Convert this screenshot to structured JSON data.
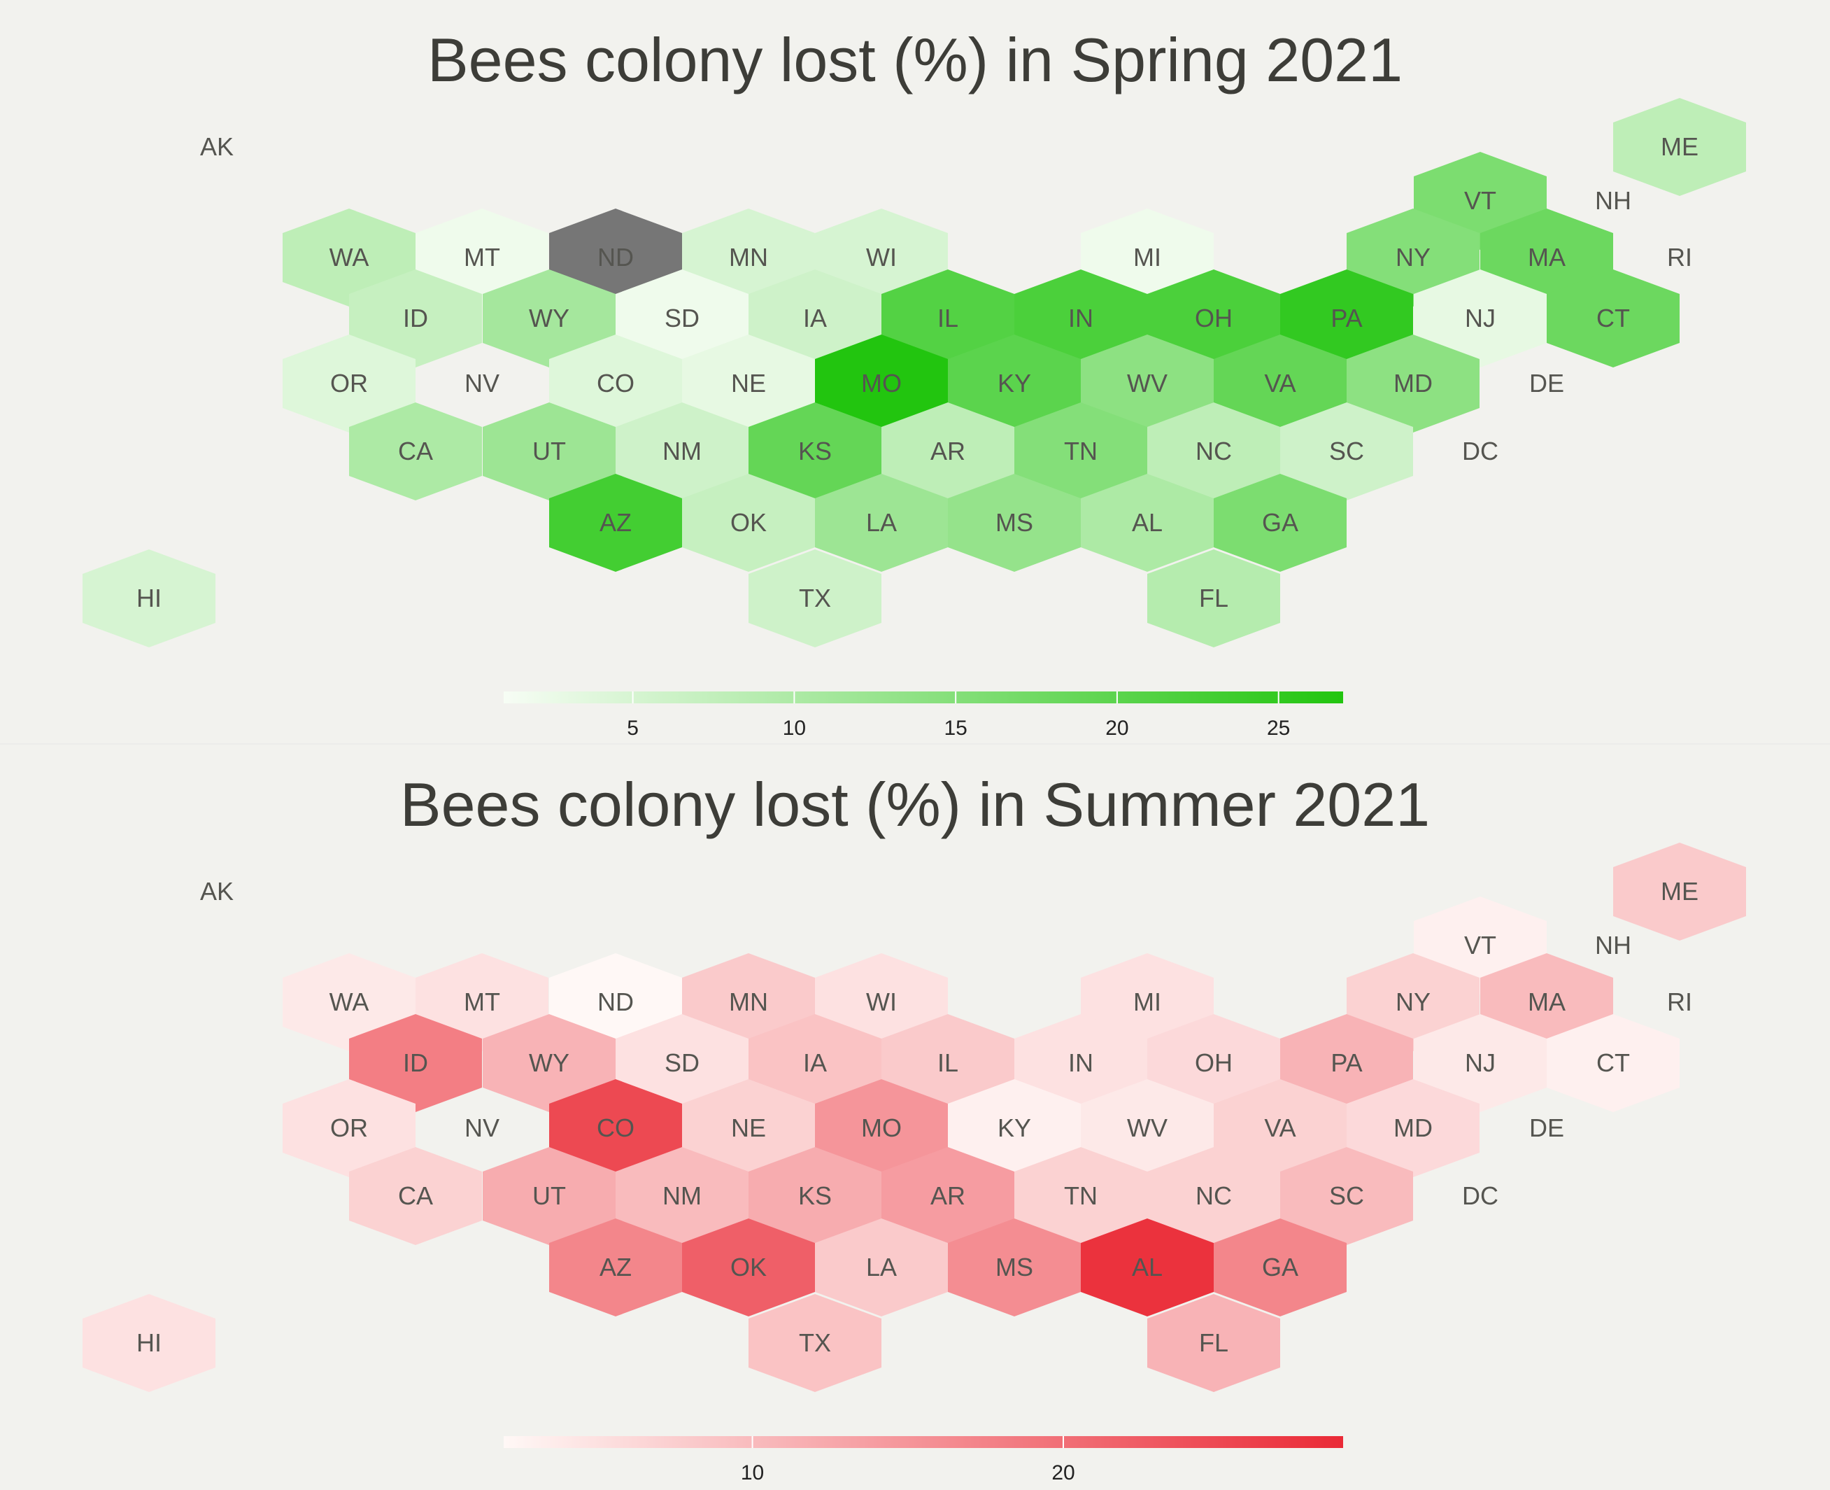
{
  "chart_data": [
    {
      "type": "heatmap",
      "subtype": "hex-tile-map",
      "title": "Bees colony lost (%) in Spring 2021",
      "colorscale": [
        "#f7fdf5",
        "#22c50f"
      ],
      "missing_color": "#767676",
      "colorbar": {
        "range": [
          1,
          27
        ],
        "ticks": [
          5,
          10,
          15,
          20,
          25
        ]
      },
      "states": [
        {
          "abbr": "AK",
          "value": null
        },
        {
          "abbr": "ME",
          "value": 8
        },
        {
          "abbr": "VT",
          "value": 16
        },
        {
          "abbr": "NH",
          "value": null
        },
        {
          "abbr": "WA",
          "value": 8
        },
        {
          "abbr": "MT",
          "value": 2
        },
        {
          "abbr": "ND",
          "value": null,
          "missing": true
        },
        {
          "abbr": "MN",
          "value": 5
        },
        {
          "abbr": "WI",
          "value": 5
        },
        {
          "abbr": "MI",
          "value": 2
        },
        {
          "abbr": "NY",
          "value": 15
        },
        {
          "abbr": "MA",
          "value": 18
        },
        {
          "abbr": "RI",
          "value": null
        },
        {
          "abbr": "ID",
          "value": 7
        },
        {
          "abbr": "WY",
          "value": 11
        },
        {
          "abbr": "SD",
          "value": 2
        },
        {
          "abbr": "IA",
          "value": 6
        },
        {
          "abbr": "IL",
          "value": 21
        },
        {
          "abbr": "IN",
          "value": 22
        },
        {
          "abbr": "OH",
          "value": 22
        },
        {
          "abbr": "PA",
          "value": 25
        },
        {
          "abbr": "NJ",
          "value": 3
        },
        {
          "abbr": "CT",
          "value": 18
        },
        {
          "abbr": "OR",
          "value": 4
        },
        {
          "abbr": "NV",
          "value": null
        },
        {
          "abbr": "CO",
          "value": 4
        },
        {
          "abbr": "NE",
          "value": 3
        },
        {
          "abbr": "MO",
          "value": 27
        },
        {
          "abbr": "KY",
          "value": 20
        },
        {
          "abbr": "WV",
          "value": 14
        },
        {
          "abbr": "VA",
          "value": 19
        },
        {
          "abbr": "MD",
          "value": 14
        },
        {
          "abbr": "DE",
          "value": null
        },
        {
          "abbr": "CA",
          "value": 10
        },
        {
          "abbr": "UT",
          "value": 12
        },
        {
          "abbr": "NM",
          "value": 6
        },
        {
          "abbr": "KS",
          "value": 19
        },
        {
          "abbr": "AR",
          "value": 8
        },
        {
          "abbr": "TN",
          "value": 15
        },
        {
          "abbr": "NC",
          "value": 8
        },
        {
          "abbr": "SC",
          "value": 6
        },
        {
          "abbr": "DC",
          "value": null
        },
        {
          "abbr": "AZ",
          "value": 23
        },
        {
          "abbr": "OK",
          "value": 7
        },
        {
          "abbr": "LA",
          "value": 12
        },
        {
          "abbr": "MS",
          "value": 13
        },
        {
          "abbr": "AL",
          "value": 10
        },
        {
          "abbr": "GA",
          "value": 16
        },
        {
          "abbr": "TX",
          "value": 6
        },
        {
          "abbr": "FL",
          "value": 9
        },
        {
          "abbr": "HI",
          "value": 5
        }
      ]
    },
    {
      "type": "heatmap",
      "subtype": "hex-tile-map",
      "title": "Bees colony lost (%) in Summer 2021",
      "colorscale": [
        "#fff8f6",
        "#ea2a36"
      ],
      "missing_color": "#767676",
      "colorbar": {
        "range": [
          2,
          29
        ],
        "ticks": [
          10,
          20
        ]
      },
      "states": [
        {
          "abbr": "AK",
          "value": null
        },
        {
          "abbr": "ME",
          "value": 8
        },
        {
          "abbr": "VT",
          "value": 3
        },
        {
          "abbr": "NH",
          "value": null
        },
        {
          "abbr": "WA",
          "value": 4
        },
        {
          "abbr": "MT",
          "value": 5
        },
        {
          "abbr": "ND",
          "value": 2
        },
        {
          "abbr": "MN",
          "value": 8
        },
        {
          "abbr": "WI",
          "value": 5
        },
        {
          "abbr": "MI",
          "value": 5
        },
        {
          "abbr": "NY",
          "value": 7
        },
        {
          "abbr": "MA",
          "value": 10
        },
        {
          "abbr": "RI",
          "value": null
        },
        {
          "abbr": "ID",
          "value": 18
        },
        {
          "abbr": "WY",
          "value": 11
        },
        {
          "abbr": "SD",
          "value": 5
        },
        {
          "abbr": "IA",
          "value": 9
        },
        {
          "abbr": "IL",
          "value": 8
        },
        {
          "abbr": "IN",
          "value": 5
        },
        {
          "abbr": "OH",
          "value": 6
        },
        {
          "abbr": "PA",
          "value": 11
        },
        {
          "abbr": "NJ",
          "value": 4
        },
        {
          "abbr": "CT",
          "value": 3
        },
        {
          "abbr": "OR",
          "value": 5
        },
        {
          "abbr": "NV",
          "value": null
        },
        {
          "abbr": "CO",
          "value": 25
        },
        {
          "abbr": "NE",
          "value": 7
        },
        {
          "abbr": "MO",
          "value": 15
        },
        {
          "abbr": "KY",
          "value": 3
        },
        {
          "abbr": "WV",
          "value": 4
        },
        {
          "abbr": "VA",
          "value": 7
        },
        {
          "abbr": "MD",
          "value": 6
        },
        {
          "abbr": "DE",
          "value": null
        },
        {
          "abbr": "CA",
          "value": 7
        },
        {
          "abbr": "UT",
          "value": 12
        },
        {
          "abbr": "NM",
          "value": 10
        },
        {
          "abbr": "KS",
          "value": 12
        },
        {
          "abbr": "AR",
          "value": 14
        },
        {
          "abbr": "TN",
          "value": 7
        },
        {
          "abbr": "NC",
          "value": 7
        },
        {
          "abbr": "SC",
          "value": 10
        },
        {
          "abbr": "DC",
          "value": null
        },
        {
          "abbr": "AZ",
          "value": 17
        },
        {
          "abbr": "OK",
          "value": 22
        },
        {
          "abbr": "LA",
          "value": 8
        },
        {
          "abbr": "MS",
          "value": 16
        },
        {
          "abbr": "AL",
          "value": 28
        },
        {
          "abbr": "GA",
          "value": 17
        },
        {
          "abbr": "TX",
          "value": 9
        },
        {
          "abbr": "FL",
          "value": 11
        },
        {
          "abbr": "HI",
          "value": 5
        }
      ]
    }
  ]
}
